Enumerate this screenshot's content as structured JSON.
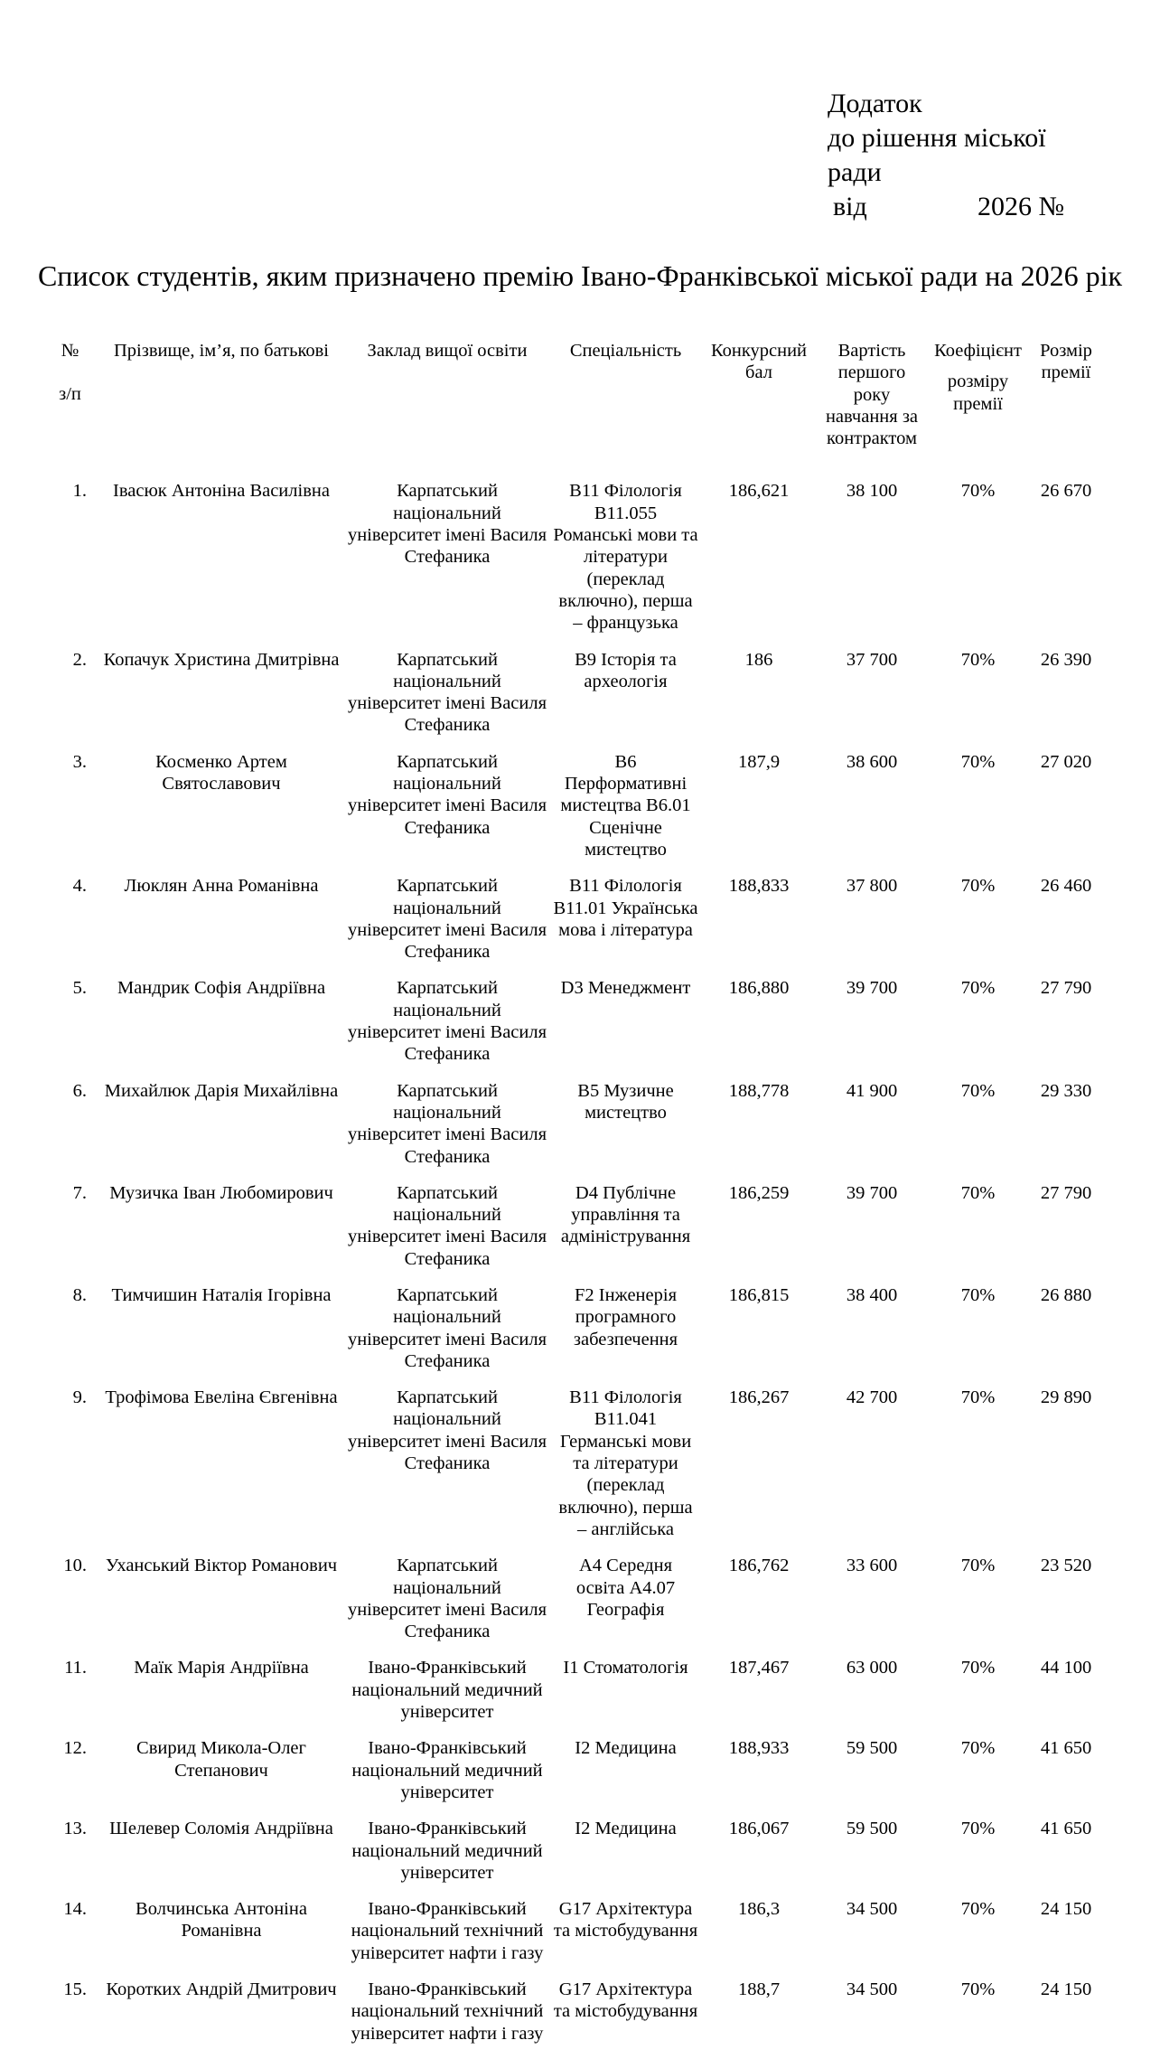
{
  "annex": {
    "line1": "Додаток",
    "line2": "до рішення міської",
    "line3": "ради",
    "date_prefix": "від",
    "date_suffix": "2026 №"
  },
  "title": "Список студентів, яким призначено премію Івано-Франківської міської ради на 2026 рік",
  "headers": {
    "num_a": "№",
    "num_b": "з/п",
    "name": "Прізвище, ім’я, по батькові",
    "institution": "Заклад вищої освіти",
    "specialty": "Спеціальність",
    "score": "Конкурсний бал",
    "cost": "Вартість першого року навчання за контрактом",
    "coef_a": "Коефіцієнт",
    "coef_b": "розміру премії",
    "prize": "Розмір премії"
  },
  "rows": [
    {
      "n": "1.",
      "name": "Івасюк Антоніна Василівна",
      "inst": "Карпатський національний університет імені Василя Стефаника",
      "spec": "B11 Філологія B11.055 Романські мови та літератури (переклад включно), перша – французька",
      "score": "186,621",
      "cost": "38 100",
      "coef": "70%",
      "prize": "26 670"
    },
    {
      "n": "2.",
      "name": "Копачук Христина Дмитрівна",
      "inst": "Карпатський національний університет імені Василя Стефаника",
      "spec": "B9 Історія та археологія",
      "score": "186",
      "cost": "37 700",
      "coef": "70%",
      "prize": "26 390"
    },
    {
      "n": "3.",
      "name": "Косменко Артем Святославович",
      "inst": "Карпатський національний університет імені Василя Стефаника",
      "spec": "B6 Перформативні мистецтва B6.01 Сценічне мистецтво",
      "score": "187,9",
      "cost": "38 600",
      "coef": "70%",
      "prize": "27 020"
    },
    {
      "n": "4.",
      "name": "Люклян Анна Романівна",
      "inst": "Карпатський національний університет імені Василя Стефаника",
      "spec": "B11 Філологія B11.01 Українська мова і література",
      "score": "188,833",
      "cost": "37 800",
      "coef": "70%",
      "prize": "26 460"
    },
    {
      "n": "5.",
      "name": "Мандрик Софія Андріївна",
      "inst": "Карпатський національний університет імені Василя Стефаника",
      "spec": "D3 Менеджмент",
      "score": "186,880",
      "cost": "39 700",
      "coef": "70%",
      "prize": "27 790"
    },
    {
      "n": "6.",
      "name": "Михайлюк Дарія Михайлівна",
      "inst": "Карпатський національний університет імені Василя Стефаника",
      "spec": "B5 Музичне мистецтво",
      "score": "188,778",
      "cost": "41 900",
      "coef": "70%",
      "prize": "29 330"
    },
    {
      "n": "7.",
      "name": "Музичка Іван Любомирович",
      "inst": "Карпатський національний університет імені Василя Стефаника",
      "spec": "D4 Публічне управління та адміністрування",
      "score": "186,259",
      "cost": "39 700",
      "coef": "70%",
      "prize": "27 790"
    },
    {
      "n": "8.",
      "name": "Тимчишин Наталія Ігорівна",
      "inst": "Карпатський національний університет імені Василя Стефаника",
      "spec": "F2 Інженерія програмного забезпечення",
      "score": "186,815",
      "cost": "38 400",
      "coef": "70%",
      "prize": "26 880"
    },
    {
      "n": "9.",
      "name": "Трофімова Евеліна Євгенівна",
      "inst": "Карпатський національний університет імені Василя Стефаника",
      "spec": "B11 Філологія B11.041 Германські мови та літератури (переклад включно), перша – англійська",
      "score": "186,267",
      "cost": "42 700",
      "coef": "70%",
      "prize": "29 890"
    },
    {
      "n": "10.",
      "name": "Уханський Віктор Романович",
      "inst": "Карпатський національний університет імені Василя Стефаника",
      "spec": "A4 Середня освіта A4.07 Географія",
      "score": "186,762",
      "cost": "33 600",
      "coef": "70%",
      "prize": "23 520"
    },
    {
      "n": "11.",
      "name": "Маїк Марія Андріївна",
      "inst": "Івано-Франківський національний медичний університет",
      "spec": "I1 Стоматологія",
      "score": "187,467",
      "cost": "63 000",
      "coef": "70%",
      "prize": "44 100"
    },
    {
      "n": "12.",
      "name": "Свирид Микола-Олег Степанович",
      "inst": "Івано-Франківський національний медичний університет",
      "spec": "I2 Медицина",
      "score": "188,933",
      "cost": "59 500",
      "coef": "70%",
      "prize": "41 650"
    },
    {
      "n": "13.",
      "name": "Шелевер Соломія Андріївна",
      "inst": "Івано-Франківський національний медичний університет",
      "spec": "I2 Медицина",
      "score": "186,067",
      "cost": "59 500",
      "coef": "70%",
      "prize": "41 650"
    },
    {
      "n": "14.",
      "name": "Волчинська Антоніна Романівна",
      "inst": "Івано-Франківський національний технічний університет нафти і газу",
      "spec": "G17 Архітектура та містобудування",
      "score": "186,3",
      "cost": "34 500",
      "coef": "70%",
      "prize": "24 150"
    },
    {
      "n": "15.",
      "name": "Коротких Андрій Дмитрович",
      "inst": "Івано-Франківський національний технічний університет нафти і газу",
      "spec": "G17 Архітектура та містобудування",
      "score": "188,7",
      "cost": "34 500",
      "coef": "70%",
      "prize": "24 150"
    }
  ]
}
